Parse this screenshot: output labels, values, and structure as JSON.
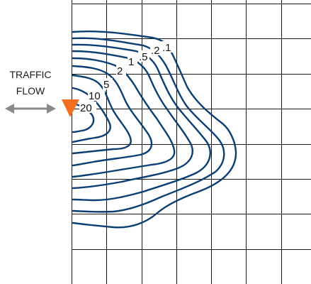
{
  "flow_label": {
    "line1": "TRAFFIC",
    "line2": "FLOW"
  },
  "contour_labels": [
    {
      "id": "label-20",
      "text": "20"
    },
    {
      "id": "label-10",
      "text": "10"
    },
    {
      "id": "label-5",
      "text": "5"
    },
    {
      "id": "label-2",
      "text": "2"
    },
    {
      "id": "label-1",
      "text": "1"
    },
    {
      "id": "label-0-5",
      "text": ".5"
    },
    {
      "id": "label-0-2",
      "text": ".2"
    },
    {
      "id": "label-0-1",
      "text": ".1"
    }
  ],
  "colors": {
    "grid": "#1a1a1a",
    "contour": "#0b3f73",
    "arrow": "#8a8a8a",
    "source_marker": "#f26f21"
  },
  "icons": {
    "flow_arrow": "double-headed-arrow-icon",
    "source_marker": "downward-triangle-icon"
  }
}
